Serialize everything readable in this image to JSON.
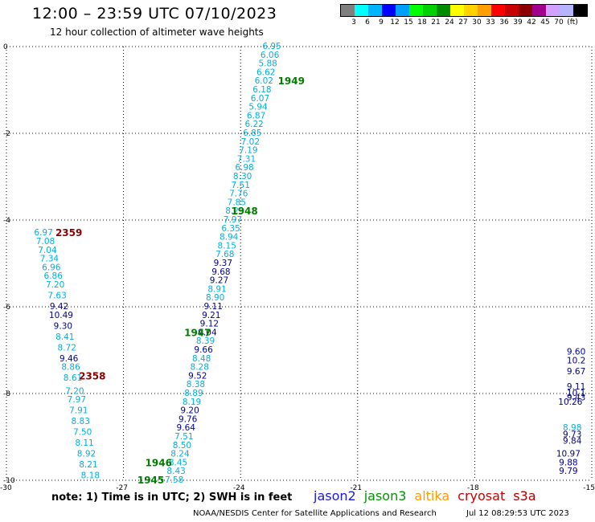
{
  "title": "12:00 – 23:59 UTC 07/10/2023",
  "subtitle": "12 hour collection of altimeter wave heights",
  "legend": {
    "unit": "(ft)",
    "colors": [
      "#7f7f7f",
      "#00ffff",
      "#00b4ff",
      "#0000ff",
      "#00a0ff",
      "#00ff00",
      "#00d200",
      "#008c00",
      "#ffff00",
      "#ffd200",
      "#ffa000",
      "#ff0000",
      "#c80000",
      "#8c0000",
      "#a0008c",
      "#d2a0ff",
      "#b4b4ff",
      "#000000"
    ],
    "labels": [
      "3",
      "6",
      "9",
      "12",
      "15",
      "18",
      "21",
      "24",
      "27",
      "30",
      "33",
      "36",
      "39",
      "42",
      "45",
      "70"
    ]
  },
  "map": {
    "lon_range": [
      -30,
      -15
    ],
    "lat_range": [
      -10,
      0
    ],
    "x_ticks": [
      "-30",
      "-27",
      "-24",
      "-21",
      "-18",
      "-15"
    ],
    "y_ticks": [
      "0",
      "-2",
      "-4",
      "-6",
      "-8",
      "-10"
    ],
    "colors": {
      "cyan": "#00b0e0",
      "dblue": "#000090",
      "green": "#007c00",
      "darkred": "#8b0000"
    },
    "time_labels": [
      {
        "text": "1949",
        "lon": -22.7,
        "lat": -0.8,
        "color": "green"
      },
      {
        "text": "1948",
        "lon": -23.9,
        "lat": -3.8,
        "color": "green"
      },
      {
        "text": "1947",
        "lon": -25.1,
        "lat": -6.6,
        "color": "green"
      },
      {
        "text": "1946",
        "lon": -26.1,
        "lat": -9.6,
        "color": "green"
      },
      {
        "text": "1945",
        "lon": -26.3,
        "lat": -10.0,
        "color": "green"
      },
      {
        "text": "2359",
        "lon": -28.4,
        "lat": -4.3,
        "color": "darkred"
      },
      {
        "text": "2358",
        "lon": -27.8,
        "lat": -7.6,
        "color": "darkred"
      }
    ],
    "tracks": [
      {
        "name": "track-1",
        "points": [
          {
            "v": "6.95",
            "lon": -23.2,
            "lat": 0.0,
            "c": "cyan"
          },
          {
            "v": "6.06",
            "lon": -23.25,
            "lat": -0.2,
            "c": "cyan"
          },
          {
            "v": "5.88",
            "lon": -23.3,
            "lat": -0.4,
            "c": "cyan"
          },
          {
            "v": "6.62",
            "lon": -23.35,
            "lat": -0.6,
            "c": "cyan"
          },
          {
            "v": "6.02",
            "lon": -23.4,
            "lat": -0.8,
            "c": "cyan"
          },
          {
            "v": "6.18",
            "lon": -23.45,
            "lat": -1.0,
            "c": "cyan"
          },
          {
            "v": "6.07",
            "lon": -23.5,
            "lat": -1.2,
            "c": "cyan"
          },
          {
            "v": "5.94",
            "lon": -23.55,
            "lat": -1.4,
            "c": "cyan"
          },
          {
            "v": "6.87",
            "lon": -23.6,
            "lat": -1.6,
            "c": "cyan"
          },
          {
            "v": "6.22",
            "lon": -23.65,
            "lat": -1.8,
            "c": "cyan"
          },
          {
            "v": "6.85",
            "lon": -23.7,
            "lat": -2.0,
            "c": "cyan"
          },
          {
            "v": "7.02",
            "lon": -23.75,
            "lat": -2.2,
            "c": "cyan"
          },
          {
            "v": "7.19",
            "lon": -23.8,
            "lat": -2.4,
            "c": "cyan"
          },
          {
            "v": "7.31",
            "lon": -23.85,
            "lat": -2.6,
            "c": "cyan"
          },
          {
            "v": "6.98",
            "lon": -23.9,
            "lat": -2.8,
            "c": "cyan"
          },
          {
            "v": "8.30",
            "lon": -23.95,
            "lat": -3.0,
            "c": "cyan"
          },
          {
            "v": "7.51",
            "lon": -24.0,
            "lat": -3.2,
            "c": "cyan"
          },
          {
            "v": "7.76",
            "lon": -24.05,
            "lat": -3.4,
            "c": "cyan"
          },
          {
            "v": "7.85",
            "lon": -24.1,
            "lat": -3.6,
            "c": "cyan"
          },
          {
            "v": "8.23",
            "lon": -24.15,
            "lat": -3.8,
            "c": "cyan"
          },
          {
            "v": "7.97",
            "lon": -24.2,
            "lat": -4.0,
            "c": "cyan"
          },
          {
            "v": "6.35",
            "lon": -24.25,
            "lat": -4.2,
            "c": "cyan"
          },
          {
            "v": "8.94",
            "lon": -24.3,
            "lat": -4.4,
            "c": "cyan"
          },
          {
            "v": "8.15",
            "lon": -24.35,
            "lat": -4.6,
            "c": "cyan"
          },
          {
            "v": "7.68",
            "lon": -24.4,
            "lat": -4.8,
            "c": "cyan"
          },
          {
            "v": "9.37",
            "lon": -24.45,
            "lat": -5.0,
            "c": "dblue"
          },
          {
            "v": "9.68",
            "lon": -24.5,
            "lat": -5.2,
            "c": "dblue"
          },
          {
            "v": "9.27",
            "lon": -24.55,
            "lat": -5.4,
            "c": "dblue"
          },
          {
            "v": "8.91",
            "lon": -24.6,
            "lat": -5.6,
            "c": "cyan"
          },
          {
            "v": "8.90",
            "lon": -24.65,
            "lat": -5.8,
            "c": "cyan"
          },
          {
            "v": "9.11",
            "lon": -24.7,
            "lat": -6.0,
            "c": "dblue"
          },
          {
            "v": "9.21",
            "lon": -24.75,
            "lat": -6.2,
            "c": "dblue"
          },
          {
            "v": "9.12",
            "lon": -24.8,
            "lat": -6.4,
            "c": "dblue"
          },
          {
            "v": "9.04",
            "lon": -24.85,
            "lat": -6.6,
            "c": "dblue"
          },
          {
            "v": "8.39",
            "lon": -24.9,
            "lat": -6.8,
            "c": "cyan"
          },
          {
            "v": "9.66",
            "lon": -24.95,
            "lat": -7.0,
            "c": "dblue"
          },
          {
            "v": "8.48",
            "lon": -25.0,
            "lat": -7.2,
            "c": "cyan"
          },
          {
            "v": "8.28",
            "lon": -25.05,
            "lat": -7.4,
            "c": "cyan"
          },
          {
            "v": "9.52",
            "lon": -25.1,
            "lat": -7.6,
            "c": "dblue"
          },
          {
            "v": "8.38",
            "lon": -25.15,
            "lat": -7.8,
            "c": "cyan"
          },
          {
            "v": "8.89",
            "lon": -25.2,
            "lat": -8.0,
            "c": "cyan"
          },
          {
            "v": "8.19",
            "lon": -25.25,
            "lat": -8.2,
            "c": "cyan"
          },
          {
            "v": "9.20",
            "lon": -25.3,
            "lat": -8.4,
            "c": "dblue"
          },
          {
            "v": "9.76",
            "lon": -25.35,
            "lat": -8.6,
            "c": "dblue"
          },
          {
            "v": "9.64",
            "lon": -25.4,
            "lat": -8.8,
            "c": "dblue"
          },
          {
            "v": "7.51",
            "lon": -25.45,
            "lat": -9.0,
            "c": "cyan"
          },
          {
            "v": "8.50",
            "lon": -25.5,
            "lat": -9.2,
            "c": "cyan"
          },
          {
            "v": "8.24",
            "lon": -25.55,
            "lat": -9.4,
            "c": "cyan"
          },
          {
            "v": "8.45",
            "lon": -25.6,
            "lat": -9.6,
            "c": "cyan"
          },
          {
            "v": "8.43",
            "lon": -25.65,
            "lat": -9.8,
            "c": "cyan"
          },
          {
            "v": "7.58",
            "lon": -25.7,
            "lat": -10.0,
            "c": "cyan"
          }
        ]
      },
      {
        "name": "track-2",
        "points": [
          {
            "v": "6.97",
            "lon": -29.05,
            "lat": -4.3,
            "c": "cyan"
          },
          {
            "v": "7.08",
            "lon": -29.0,
            "lat": -4.5,
            "c": "cyan"
          },
          {
            "v": "7.04",
            "lon": -28.95,
            "lat": -4.7,
            "c": "cyan"
          },
          {
            "v": "7.34",
            "lon": -28.9,
            "lat": -4.9,
            "c": "cyan"
          },
          {
            "v": "6.96",
            "lon": -28.85,
            "lat": -5.1,
            "c": "cyan"
          },
          {
            "v": "6.86",
            "lon": -28.8,
            "lat": -5.3,
            "c": "cyan"
          },
          {
            "v": "7.20",
            "lon": -28.75,
            "lat": -5.5,
            "c": "cyan"
          },
          {
            "v": "7.63",
            "lon": -28.7,
            "lat": -5.75,
            "c": "cyan"
          },
          {
            "v": "9.42",
            "lon": -28.65,
            "lat": -6.0,
            "c": "dblue"
          },
          {
            "v": "10.49",
            "lon": -28.6,
            "lat": -6.2,
            "c": "dblue"
          },
          {
            "v": "9.30",
            "lon": -28.55,
            "lat": -6.45,
            "c": "dblue"
          },
          {
            "v": "8.41",
            "lon": -28.5,
            "lat": -6.7,
            "c": "cyan"
          },
          {
            "v": "8.72",
            "lon": -28.45,
            "lat": -6.95,
            "c": "cyan"
          },
          {
            "v": "9.46",
            "lon": -28.4,
            "lat": -7.2,
            "c": "dblue"
          },
          {
            "v": "8.86",
            "lon": -28.35,
            "lat": -7.4,
            "c": "cyan"
          },
          {
            "v": "8.61",
            "lon": -28.3,
            "lat": -7.65,
            "c": "cyan"
          },
          {
            "v": "7.20",
            "lon": -28.25,
            "lat": -7.95,
            "c": "cyan"
          },
          {
            "v": "7.97",
            "lon": -28.2,
            "lat": -8.15,
            "c": "cyan"
          },
          {
            "v": "7.91",
            "lon": -28.15,
            "lat": -8.4,
            "c": "cyan"
          },
          {
            "v": "8.83",
            "lon": -28.1,
            "lat": -8.65,
            "c": "cyan"
          },
          {
            "v": "7.50",
            "lon": -28.05,
            "lat": -8.9,
            "c": "cyan"
          },
          {
            "v": "8.11",
            "lon": -28.0,
            "lat": -9.15,
            "c": "cyan"
          },
          {
            "v": "8.92",
            "lon": -27.95,
            "lat": -9.4,
            "c": "cyan"
          },
          {
            "v": "8.21",
            "lon": -27.9,
            "lat": -9.65,
            "c": "cyan"
          },
          {
            "v": "8.18",
            "lon": -27.85,
            "lat": -9.9,
            "c": "cyan"
          }
        ]
      },
      {
        "name": "track-3",
        "points": [
          {
            "v": "9.60",
            "lon": -15.4,
            "lat": -7.05,
            "c": "dblue"
          },
          {
            "v": "10.2",
            "lon": -15.4,
            "lat": -7.25,
            "c": "dblue"
          },
          {
            "v": "9.67",
            "lon": -15.4,
            "lat": -7.5,
            "c": "dblue"
          },
          {
            "v": "9.11",
            "lon": -15.4,
            "lat": -7.85,
            "c": "dblue"
          },
          {
            "v": "10.1",
            "lon": -15.4,
            "lat": -8.0,
            "c": "dblue"
          },
          {
            "v": "9.43",
            "lon": -15.4,
            "lat": -8.1,
            "c": "dblue"
          },
          {
            "v": "10.26",
            "lon": -15.55,
            "lat": -8.2,
            "c": "dblue"
          },
          {
            "v": "8.98",
            "lon": -15.5,
            "lat": -8.8,
            "c": "cyan"
          },
          {
            "v": "9.73",
            "lon": -15.5,
            "lat": -8.95,
            "c": "dblue"
          },
          {
            "v": "9.84",
            "lon": -15.5,
            "lat": -9.1,
            "c": "dblue"
          },
          {
            "v": "10.97",
            "lon": -15.6,
            "lat": -9.4,
            "c": "dblue"
          },
          {
            "v": "9.88",
            "lon": -15.6,
            "lat": -9.6,
            "c": "dblue"
          },
          {
            "v": "9.79",
            "lon": -15.6,
            "lat": -9.8,
            "c": "dblue"
          }
        ]
      }
    ]
  },
  "note": "note:  1) Time is in UTC;  2) SWH is in feet",
  "satellites": [
    {
      "name": "jason2",
      "color": "#1a1adc"
    },
    {
      "name": "jason3",
      "color": "#009600"
    },
    {
      "name": "altika",
      "color": "#ff9900"
    },
    {
      "name": "cryosat",
      "color": "#cc0000"
    },
    {
      "name": "s3a",
      "color": "#aa0000"
    }
  ],
  "credit": "NOAA/NESDIS Center for Satellite Applications and Research",
  "timestamp": "Jul 12 08:29:53 UTC 2023"
}
